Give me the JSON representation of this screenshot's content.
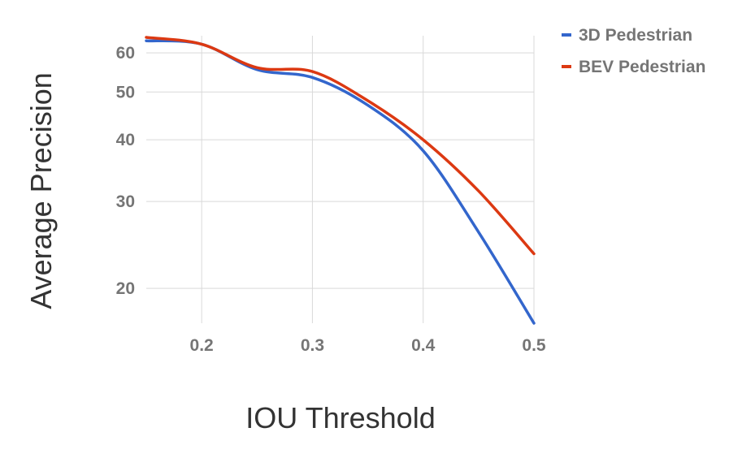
{
  "chart_data": {
    "type": "line",
    "title": "",
    "xlabel": "IOU Threshold",
    "ylabel": "Average Precision",
    "x": [
      0.15,
      0.2,
      0.25,
      0.3,
      0.35,
      0.4,
      0.45,
      0.5
    ],
    "xlim": [
      0.15,
      0.5
    ],
    "ylim": [
      17,
      65
    ],
    "y_scale": "log",
    "xticks": [
      0.2,
      0.3,
      0.4,
      0.5
    ],
    "xtick_labels": [
      "0.2",
      "0.3",
      "0.4",
      "0.5"
    ],
    "yticks": [
      20,
      30,
      40,
      50,
      60
    ],
    "ytick_labels": [
      "20",
      "30",
      "40",
      "50",
      "60"
    ],
    "grid": true,
    "legend_position": "top-right",
    "series": [
      {
        "name": "3D Pedestrian",
        "color": "#3366cc",
        "values": [
          63.5,
          62.5,
          55.5,
          53.5,
          47,
          38,
          26,
          17
        ]
      },
      {
        "name": "BEV Pedestrian",
        "color": "#dc3912",
        "values": [
          64.5,
          62.5,
          56,
          55,
          48,
          40,
          31.5,
          23.5
        ]
      }
    ]
  }
}
